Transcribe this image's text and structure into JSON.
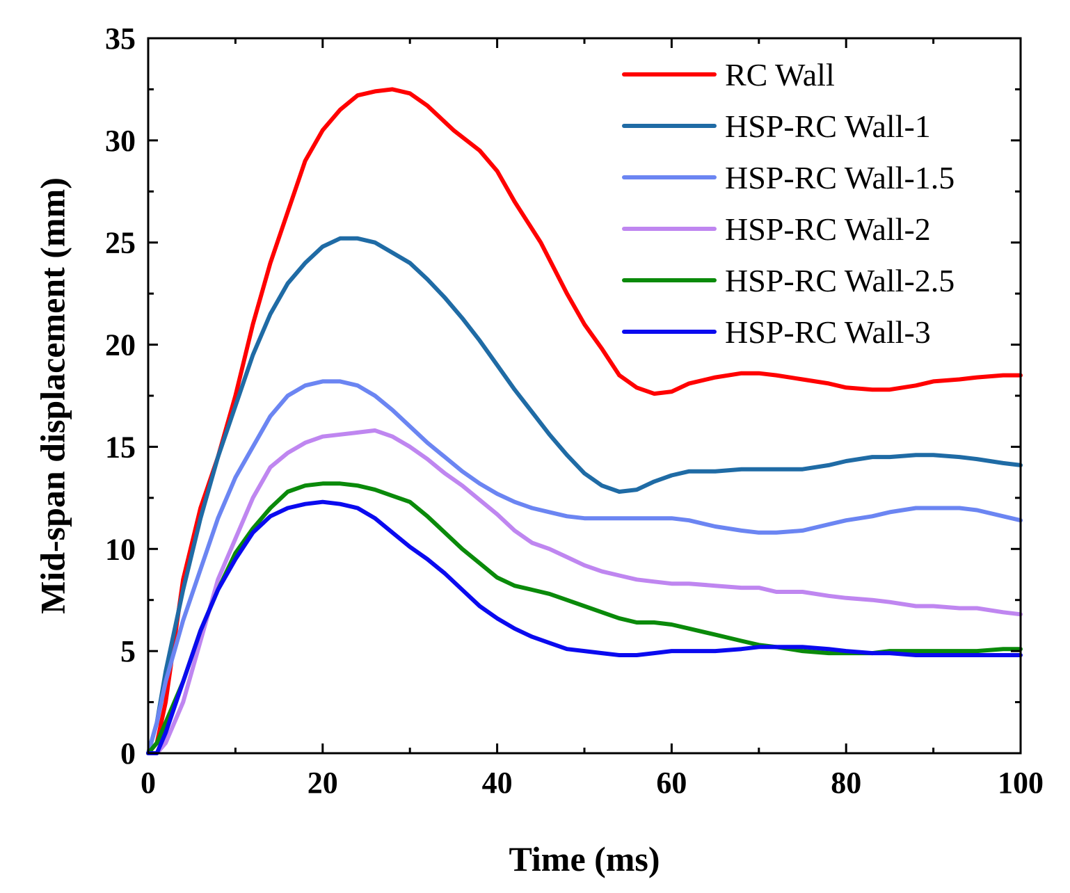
{
  "chart_data": {
    "type": "line",
    "xlabel": "Time (ms)",
    "ylabel": "Mid-span displacement (mm)",
    "xlim": [
      0,
      100
    ],
    "ylim": [
      0,
      35
    ],
    "x_ticks": [
      0,
      20,
      40,
      60,
      80,
      100
    ],
    "y_ticks": [
      0,
      5,
      10,
      15,
      20,
      25,
      30,
      35
    ],
    "x_tick_labels": [
      "0",
      "20",
      "40",
      "60",
      "80",
      "100"
    ],
    "y_tick_labels": [
      "0",
      "5",
      "10",
      "15",
      "20",
      "25",
      "30",
      "35"
    ],
    "grid": false,
    "legend_position": "top-right",
    "series": [
      {
        "name": "RC Wall",
        "color": "#ff0000",
        "x": [
          0,
          1,
          2,
          3,
          4,
          6,
          8,
          10,
          12,
          14,
          16,
          18,
          20,
          22,
          24,
          26,
          28,
          30,
          32,
          35,
          38,
          40,
          42,
          45,
          48,
          50,
          52,
          54,
          56,
          58,
          60,
          62,
          65,
          68,
          70,
          72,
          75,
          78,
          80,
          83,
          85,
          88,
          90,
          93,
          95,
          98,
          100
        ],
        "y": [
          0,
          0.5,
          2.5,
          5.5,
          8.5,
          12,
          14.5,
          17.5,
          21,
          24,
          26.5,
          29,
          30.5,
          31.5,
          32.2,
          32.4,
          32.5,
          32.3,
          31.7,
          30.5,
          29.5,
          28.5,
          27,
          25,
          22.5,
          21,
          19.8,
          18.5,
          17.9,
          17.6,
          17.7,
          18.1,
          18.4,
          18.6,
          18.6,
          18.5,
          18.3,
          18.1,
          17.9,
          17.8,
          17.8,
          18,
          18.2,
          18.3,
          18.4,
          18.5,
          18.5
        ]
      },
      {
        "name": "HSP-RC Wall-1",
        "color": "#1f6ba5",
        "x": [
          0,
          1,
          2,
          4,
          6,
          8,
          10,
          12,
          14,
          16,
          18,
          20,
          22,
          24,
          26,
          28,
          30,
          32,
          34,
          36,
          38,
          40,
          42,
          44,
          46,
          48,
          50,
          52,
          54,
          56,
          58,
          60,
          62,
          65,
          68,
          70,
          72,
          75,
          78,
          80,
          83,
          85,
          88,
          90,
          93,
          95,
          98,
          100
        ],
        "y": [
          0,
          1.5,
          4,
          8,
          11.5,
          14.5,
          17,
          19.5,
          21.5,
          23,
          24,
          24.8,
          25.2,
          25.2,
          25,
          24.5,
          24,
          23.2,
          22.3,
          21.3,
          20.2,
          19,
          17.8,
          16.7,
          15.6,
          14.6,
          13.7,
          13.1,
          12.8,
          12.9,
          13.3,
          13.6,
          13.8,
          13.8,
          13.9,
          13.9,
          13.9,
          13.9,
          14.1,
          14.3,
          14.5,
          14.5,
          14.6,
          14.6,
          14.5,
          14.4,
          14.2,
          14.1
        ]
      },
      {
        "name": "HSP-RC Wall-1.5",
        "color": "#6b85f2",
        "x": [
          0,
          1,
          2,
          4,
          6,
          8,
          10,
          12,
          14,
          16,
          18,
          20,
          22,
          24,
          26,
          28,
          30,
          32,
          34,
          36,
          38,
          40,
          42,
          44,
          46,
          48,
          50,
          52,
          54,
          56,
          58,
          60,
          62,
          65,
          68,
          70,
          72,
          75,
          78,
          80,
          83,
          85,
          88,
          90,
          93,
          95,
          98,
          100
        ],
        "y": [
          0,
          1.5,
          3.5,
          6.5,
          9,
          11.5,
          13.5,
          15,
          16.5,
          17.5,
          18,
          18.2,
          18.2,
          18,
          17.5,
          16.8,
          16,
          15.2,
          14.5,
          13.8,
          13.2,
          12.7,
          12.3,
          12,
          11.8,
          11.6,
          11.5,
          11.5,
          11.5,
          11.5,
          11.5,
          11.5,
          11.4,
          11.1,
          10.9,
          10.8,
          10.8,
          10.9,
          11.2,
          11.4,
          11.6,
          11.8,
          12,
          12,
          12,
          11.9,
          11.6,
          11.4
        ]
      },
      {
        "name": "HSP-RC Wall-2",
        "color": "#bf86f0",
        "x": [
          0,
          1,
          2,
          4,
          6,
          8,
          10,
          12,
          14,
          16,
          18,
          20,
          22,
          24,
          26,
          28,
          30,
          32,
          34,
          36,
          38,
          40,
          42,
          44,
          46,
          48,
          50,
          52,
          54,
          56,
          58,
          60,
          62,
          65,
          68,
          70,
          72,
          75,
          78,
          80,
          83,
          85,
          88,
          90,
          93,
          95,
          98,
          100
        ],
        "y": [
          0,
          0,
          0.5,
          2.5,
          5.5,
          8.5,
          10.5,
          12.5,
          14,
          14.7,
          15.2,
          15.5,
          15.6,
          15.7,
          15.8,
          15.5,
          15,
          14.4,
          13.7,
          13.1,
          12.4,
          11.7,
          10.9,
          10.3,
          10,
          9.6,
          9.2,
          8.9,
          8.7,
          8.5,
          8.4,
          8.3,
          8.3,
          8.2,
          8.1,
          8.1,
          7.9,
          7.9,
          7.7,
          7.6,
          7.5,
          7.4,
          7.2,
          7.2,
          7.1,
          7.1,
          6.9,
          6.8
        ]
      },
      {
        "name": "HSP-RC Wall-2.5",
        "color": "#0a8a0a",
        "x": [
          0,
          1,
          2,
          4,
          6,
          8,
          10,
          12,
          14,
          16,
          18,
          20,
          22,
          24,
          26,
          28,
          30,
          32,
          34,
          36,
          38,
          40,
          42,
          44,
          46,
          48,
          50,
          52,
          54,
          56,
          58,
          60,
          62,
          65,
          68,
          70,
          72,
          75,
          78,
          80,
          83,
          85,
          88,
          90,
          93,
          95,
          98,
          100
        ],
        "y": [
          0,
          0.5,
          1.5,
          3.5,
          6,
          8,
          9.8,
          11,
          12,
          12.8,
          13.1,
          13.2,
          13.2,
          13.1,
          12.9,
          12.6,
          12.3,
          11.6,
          10.8,
          10,
          9.3,
          8.6,
          8.2,
          8,
          7.8,
          7.5,
          7.2,
          6.9,
          6.6,
          6.4,
          6.4,
          6.3,
          6.1,
          5.8,
          5.5,
          5.3,
          5.2,
          5,
          4.9,
          4.9,
          4.9,
          5,
          5,
          5,
          5,
          5,
          5.1,
          5.1
        ]
      },
      {
        "name": "HSP-RC Wall-3",
        "color": "#0a0aef",
        "x": [
          0,
          1,
          2,
          4,
          6,
          8,
          10,
          12,
          14,
          16,
          18,
          20,
          22,
          24,
          26,
          28,
          30,
          32,
          34,
          36,
          38,
          40,
          42,
          44,
          46,
          48,
          50,
          52,
          54,
          56,
          58,
          60,
          62,
          65,
          68,
          70,
          72,
          75,
          78,
          80,
          83,
          85,
          88,
          90,
          93,
          95,
          98,
          100
        ],
        "y": [
          0,
          0,
          1,
          3.5,
          6,
          8,
          9.5,
          10.8,
          11.6,
          12,
          12.2,
          12.3,
          12.2,
          12,
          11.5,
          10.8,
          10.1,
          9.5,
          8.8,
          8,
          7.2,
          6.6,
          6.1,
          5.7,
          5.4,
          5.1,
          5,
          4.9,
          4.8,
          4.8,
          4.9,
          5,
          5,
          5,
          5.1,
          5.2,
          5.2,
          5.2,
          5.1,
          5,
          4.9,
          4.9,
          4.8,
          4.8,
          4.8,
          4.8,
          4.8,
          4.8
        ]
      }
    ]
  }
}
